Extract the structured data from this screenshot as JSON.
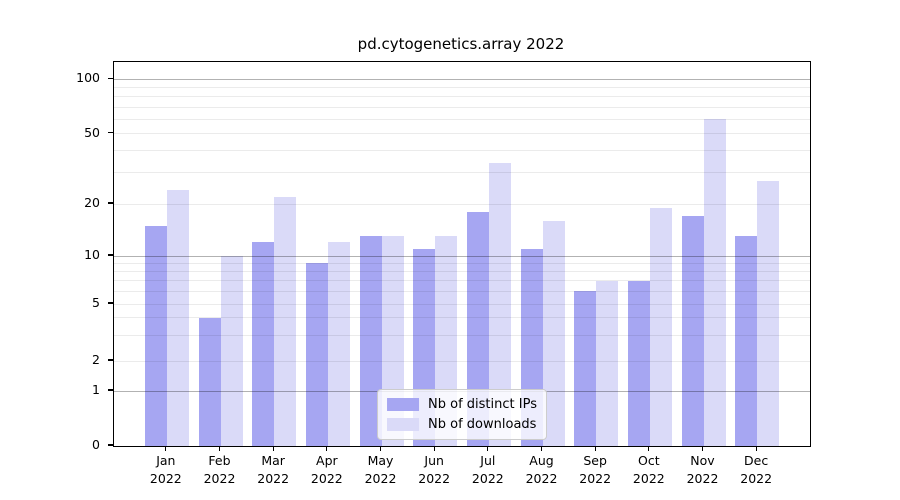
{
  "title": "pd.cytogenetics.array 2022",
  "chart_data": {
    "type": "bar",
    "title": "pd.cytogenetics.array 2022",
    "categories": [
      "Jan 2022",
      "Feb 2022",
      "Mar 2022",
      "Apr 2022",
      "May 2022",
      "Jun 2022",
      "Jul 2022",
      "Aug 2022",
      "Sep 2022",
      "Oct 2022",
      "Nov 2022",
      "Dec 2022"
    ],
    "series": [
      {
        "name": "Nb of distinct IPs",
        "key": "distinct-ips",
        "color": "#a6a6f2",
        "values": [
          15,
          4,
          12,
          9,
          13,
          11,
          18,
          11,
          6,
          7,
          17,
          13
        ]
      },
      {
        "name": "Nb of downloads",
        "key": "downloads",
        "color": "#dadaf8",
        "values": [
          24,
          10,
          22,
          12,
          13,
          13,
          34,
          16,
          7,
          19,
          60,
          27
        ]
      }
    ],
    "xlabel": "",
    "ylabel": "",
    "yscale": "symlog",
    "ylim": [
      0,
      125
    ],
    "y_ticks": [
      0,
      1,
      2,
      5,
      10,
      20,
      50,
      100
    ],
    "y_tick_labels": [
      "0",
      "1",
      "2",
      "5",
      "10",
      "20",
      "50",
      "100"
    ],
    "y_major_grid": [
      1,
      10,
      100
    ],
    "y_minor_grid": [
      2,
      3,
      4,
      5,
      6,
      7,
      8,
      9,
      20,
      30,
      40,
      50,
      60,
      70,
      80,
      90
    ],
    "grid": "on",
    "legend_position": "lower center"
  },
  "colors": {
    "background": "#ffffff",
    "axis": "#000000",
    "text": "#000000",
    "grid_major": "rgba(0,0,0,0.30)",
    "grid_minor": "rgba(0,0,0,0.08)",
    "legend_bg": "rgba(255,255,255,0.8)",
    "legend_border": "#cccccc",
    "bar_distinct_ips": "#a6a6f2",
    "bar_downloads": "#dadaf8"
  }
}
